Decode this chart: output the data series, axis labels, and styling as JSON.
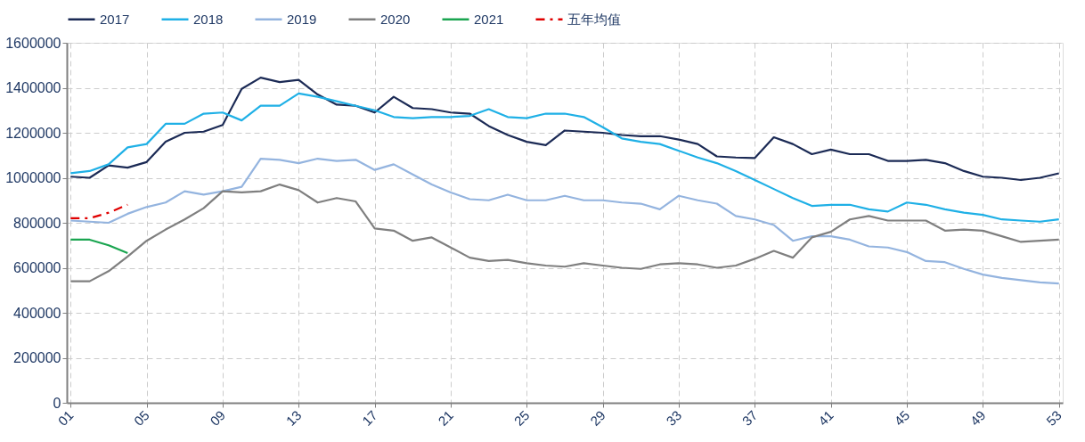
{
  "chart_data": {
    "type": "line",
    "categories": [
      "01",
      null,
      null,
      null,
      "05",
      null,
      null,
      null,
      "09",
      null,
      null,
      null,
      "13",
      null,
      null,
      null,
      "17",
      null,
      null,
      null,
      "21",
      null,
      null,
      null,
      "25",
      null,
      null,
      null,
      "29",
      null,
      null,
      null,
      "33",
      null,
      null,
      null,
      "37",
      null,
      null,
      null,
      "41",
      null,
      null,
      null,
      "45",
      null,
      null,
      null,
      "49",
      null,
      null,
      null,
      "53"
    ],
    "series": [
      {
        "name": "2017",
        "color": "#1b2a55",
        "values": [
          1005000,
          1000000,
          1055000,
          1045000,
          1070000,
          1160000,
          1200000,
          1205000,
          1235000,
          1395000,
          1445000,
          1425000,
          1435000,
          1370000,
          1325000,
          1320000,
          1290000,
          1360000,
          1310000,
          1305000,
          1290000,
          1285000,
          1230000,
          1190000,
          1160000,
          1145000,
          1210000,
          1205000,
          1200000,
          1190000,
          1185000,
          1185000,
          1170000,
          1150000,
          1095000,
          1090000,
          1088000,
          1180000,
          1150000,
          1105000,
          1125000,
          1105000,
          1105000,
          1075000,
          1075000,
          1080000,
          1065000,
          1030000,
          1005000,
          1000000,
          990000,
          1000000,
          1020000
        ]
      },
      {
        "name": "2018",
        "color": "#1fb0e6",
        "values": [
          1020000,
          1030000,
          1060000,
          1135000,
          1150000,
          1240000,
          1240000,
          1285000,
          1290000,
          1255000,
          1320000,
          1320000,
          1375000,
          1360000,
          1340000,
          1320000,
          1300000,
          1270000,
          1265000,
          1270000,
          1270000,
          1275000,
          1305000,
          1270000,
          1265000,
          1285000,
          1285000,
          1270000,
          1225000,
          1175000,
          1160000,
          1150000,
          1120000,
          1090000,
          1065000,
          1030000,
          990000,
          950000,
          910000,
          875000,
          880000,
          880000,
          860000,
          850000,
          890000,
          880000,
          860000,
          845000,
          835000,
          815000,
          810000,
          805000,
          815000
        ]
      },
      {
        "name": "2019",
        "color": "#94b4df",
        "values": [
          810000,
          805000,
          800000,
          840000,
          870000,
          890000,
          940000,
          925000,
          940000,
          960000,
          1085000,
          1080000,
          1065000,
          1085000,
          1075000,
          1080000,
          1035000,
          1060000,
          1015000,
          970000,
          935000,
          905000,
          900000,
          925000,
          900000,
          900000,
          920000,
          900000,
          900000,
          890000,
          885000,
          860000,
          920000,
          900000,
          885000,
          830000,
          815000,
          790000,
          720000,
          740000,
          740000,
          725000,
          695000,
          690000,
          670000,
          630000,
          625000,
          595000,
          570000,
          555000,
          545000,
          535000,
          530000
        ]
      },
      {
        "name": "2020",
        "color": "#7f7f7f",
        "values": [
          540000,
          540000,
          585000,
          650000,
          720000,
          770000,
          815000,
          865000,
          940000,
          935000,
          940000,
          970000,
          945000,
          890000,
          910000,
          895000,
          775000,
          765000,
          720000,
          735000,
          690000,
          645000,
          630000,
          635000,
          620000,
          610000,
          605000,
          620000,
          610000,
          600000,
          595000,
          615000,
          620000,
          615000,
          600000,
          610000,
          640000,
          675000,
          645000,
          735000,
          760000,
          815000,
          830000,
          810000,
          810000,
          810000,
          765000,
          770000,
          765000,
          740000,
          715000,
          720000,
          725000
        ]
      },
      {
        "name": "2021",
        "color": "#1aa550",
        "values": [
          725000,
          725000,
          700000,
          665000,
          null,
          null,
          null,
          null,
          null,
          null,
          null,
          null,
          null,
          null,
          null,
          null,
          null,
          null,
          null,
          null,
          null,
          null,
          null,
          null,
          null,
          null,
          null,
          null,
          null,
          null,
          null,
          null,
          null,
          null,
          null,
          null,
          null,
          null,
          null,
          null,
          null,
          null,
          null,
          null,
          null,
          null,
          null,
          null,
          null,
          null,
          null,
          null,
          null
        ]
      },
      {
        "name": "五年均值",
        "color": "#e00000",
        "line_style": "dashed",
        "values": [
          820000,
          820000,
          845000,
          880000,
          null,
          null,
          null,
          null,
          null,
          null,
          null,
          null,
          null,
          null,
          null,
          null,
          null,
          null,
          null,
          null,
          null,
          null,
          null,
          null,
          null,
          null,
          null,
          null,
          null,
          null,
          null,
          null,
          null,
          null,
          null,
          null,
          null,
          null,
          null,
          null,
          null,
          null,
          null,
          null,
          null,
          null,
          null,
          null,
          null,
          null,
          null,
          null,
          null
        ]
      }
    ],
    "ylim": [
      0,
      1600000
    ],
    "yticks": [
      0,
      200000,
      400000,
      600000,
      800000,
      1000000,
      1200000,
      1400000,
      1600000
    ],
    "grid": true,
    "legend": "top",
    "line_style": "solid",
    "marker": "none"
  }
}
